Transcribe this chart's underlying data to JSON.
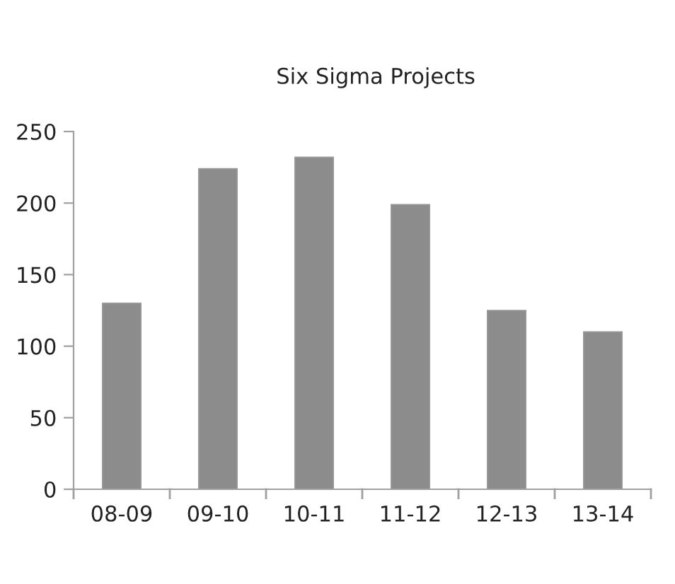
{
  "chart_data": {
    "type": "bar",
    "title": "Six Sigma Projects",
    "categories": [
      "08-09",
      "09-10",
      "10-11",
      "11-12",
      "12-13",
      "13-14"
    ],
    "values": [
      130,
      224,
      232,
      199,
      125,
      110
    ],
    "color": "#8c8c8c",
    "ylim": [
      0,
      250
    ],
    "yticks": [
      0,
      50,
      100,
      150,
      200,
      250
    ],
    "grid": false,
    "legend": false
  }
}
